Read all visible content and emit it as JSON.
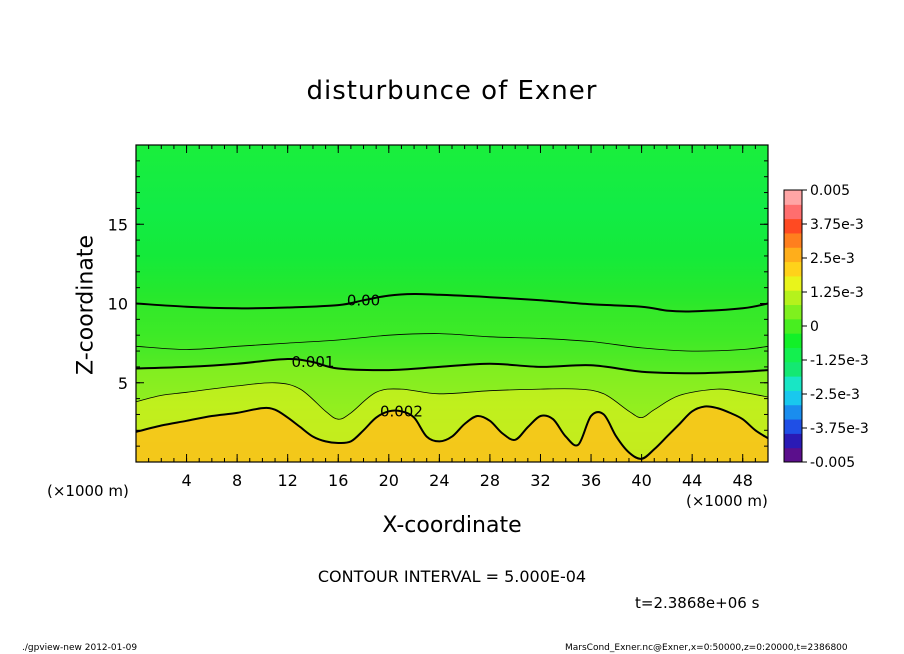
{
  "chart_data": {
    "type": "heatmap",
    "title": "disturbunce of Exner",
    "xlabel": "X-coordinate",
    "ylabel": "Z-coordinate",
    "x_unit_label": "(×1000 m)",
    "xlim": [
      0,
      50
    ],
    "ylim": [
      0,
      20
    ],
    "x_ticks": [
      4,
      8,
      12,
      16,
      20,
      24,
      28,
      32,
      36,
      40,
      44,
      48
    ],
    "y_ticks": [
      5,
      10,
      15
    ],
    "colorbar": {
      "labels": [
        "0.005",
        "3.75e-3",
        "2.5e-3",
        "1.25e-3",
        "0",
        "-1.25e-3",
        "-2.5e-3",
        "-3.75e-3",
        "-0.005"
      ],
      "range": [
        -0.005,
        0.005
      ],
      "colors": [
        "#5b0f8c",
        "#2a1ab5",
        "#1f4fe6",
        "#1a8dee",
        "#19c8ee",
        "#18e6c5",
        "#14e872",
        "#13f04f",
        "#12f028",
        "#48ee20",
        "#7ff01e",
        "#b5f21c",
        "#e9f41b",
        "#ffd21a",
        "#ffae1b",
        "#ff7f1e",
        "#ff4a22",
        "#ff6e6e",
        "#ffa5a5"
      ]
    },
    "contours": [
      {
        "label": "0.00",
        "level": 0,
        "x": [
          0,
          4,
          8,
          12,
          16,
          18,
          20,
          22,
          24,
          28,
          32,
          36,
          40,
          42,
          44,
          48,
          50
        ],
        "z": [
          10.0,
          9.8,
          9.7,
          9.75,
          9.9,
          10.2,
          10.5,
          10.6,
          10.55,
          10.4,
          10.2,
          9.95,
          9.8,
          9.55,
          9.5,
          9.7,
          10.0
        ]
      },
      {
        "label": "",
        "level": 0.0005,
        "x": [
          0,
          4,
          8,
          12,
          16,
          20,
          24,
          28,
          32,
          36,
          40,
          44,
          48,
          50
        ],
        "z": [
          7.3,
          7.1,
          7.3,
          7.5,
          7.7,
          8.0,
          8.1,
          7.9,
          7.8,
          7.6,
          7.2,
          7.0,
          7.1,
          7.3
        ]
      },
      {
        "label": "0.001",
        "level": 0.001,
        "x": [
          0,
          4,
          8,
          12,
          14,
          16,
          20,
          24,
          28,
          32,
          36,
          40,
          44,
          48,
          50
        ],
        "z": [
          5.9,
          6.0,
          6.2,
          6.5,
          6.3,
          5.9,
          5.8,
          6.0,
          6.2,
          6.0,
          6.1,
          5.7,
          5.6,
          5.7,
          5.8
        ]
      },
      {
        "label": "",
        "level": 0.0015,
        "x": [
          0,
          2,
          4,
          8,
          11,
          13,
          15,
          16,
          17,
          19,
          21,
          24,
          28,
          32,
          35,
          37,
          39,
          40,
          41,
          43,
          46,
          48,
          50
        ],
        "z": [
          3.8,
          4.2,
          4.4,
          4.8,
          5.0,
          4.6,
          3.2,
          2.7,
          3.1,
          4.4,
          4.6,
          4.3,
          4.5,
          4.6,
          4.6,
          4.3,
          3.2,
          2.8,
          3.3,
          4.2,
          4.6,
          4.4,
          4.1
        ]
      },
      {
        "label": "0.002",
        "level": 0.002,
        "x": [
          0,
          2,
          4,
          6,
          8,
          10,
          11,
          12,
          13,
          14,
          15,
          16,
          17,
          18,
          19,
          20,
          21,
          22,
          23,
          24,
          25,
          26,
          27,
          28,
          29,
          30,
          31,
          32,
          33,
          34,
          35,
          36,
          37,
          38,
          39,
          40,
          41,
          42,
          43,
          44,
          45,
          46,
          47,
          48,
          49,
          50
        ],
        "z": [
          1.9,
          2.3,
          2.6,
          2.9,
          3.1,
          3.4,
          3.3,
          2.8,
          2.2,
          1.6,
          1.3,
          1.2,
          1.3,
          2.0,
          2.8,
          3.2,
          3.2,
          2.8,
          1.6,
          1.3,
          1.6,
          2.4,
          2.9,
          2.6,
          1.8,
          1.4,
          2.2,
          2.9,
          2.7,
          1.6,
          1.1,
          2.9,
          3.0,
          1.6,
          0.6,
          0.2,
          0.8,
          1.6,
          2.4,
          3.2,
          3.5,
          3.4,
          3.1,
          2.7,
          2.0,
          1.5
        ]
      }
    ],
    "annotations": [
      "CONTOUR INTERVAL = 5.000E-04",
      "t=2.3868e+06 s"
    ]
  },
  "contour_interval": "CONTOUR INTERVAL = 5.000E-04",
  "time_label": "t=2.3868e+06 s",
  "footer_left": "./gpview-new  2012-01-09",
  "footer_right": "MarsCond_Exner.nc@Exner,x=0:50000,z=0:20000,t=2386800",
  "colors": {
    "frame": "#000000",
    "top_green": "#12ec3e",
    "mid_green": "#2ce82a",
    "lime": "#7fee20",
    "yellow_green": "#c8f01c",
    "yellow": "#f2e61b",
    "orange": "#ffb81b"
  }
}
